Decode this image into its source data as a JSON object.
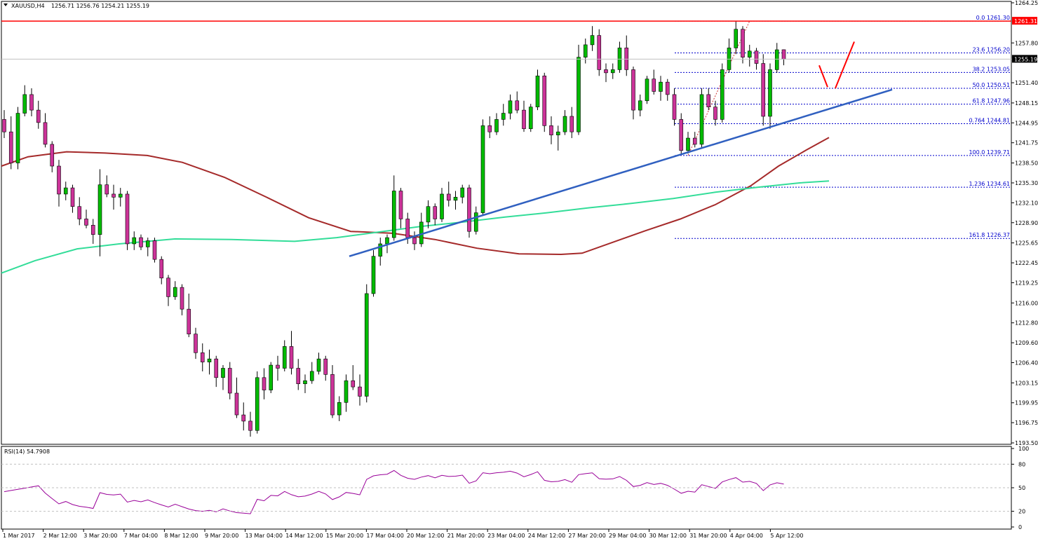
{
  "header": {
    "symbol": "XAUUSD,H4",
    "ohlc": "1256.71 1256.76 1254.21 1255.19"
  },
  "colors": {
    "bull": "#00bb00",
    "bear": "#cc3399",
    "ma_red": "#a52a2a",
    "ma_green": "#33dd99",
    "trendline": "#3060c0",
    "fib": "#0000cc",
    "resistance": "#ff0000",
    "rsi": "#990099"
  },
  "price_axis": {
    "ticks": [
      "1264.25",
      "1261.31",
      "1257.80",
      "1255.19",
      "1251.40",
      "1248.15",
      "1244.95",
      "1241.75",
      "1238.50",
      "1235.30",
      "1232.10",
      "1228.90",
      "1225.65",
      "1222.45",
      "1219.25",
      "1216.00",
      "1212.80",
      "1209.60",
      "1206.40",
      "1203.15",
      "1199.95",
      "1196.75",
      "1193.50"
    ],
    "current_price_label": "1255.19",
    "resistance_label": "1261.31"
  },
  "time_axis": {
    "labels": [
      "1 Mar 2017",
      "2 Mar 12:00",
      "3 Mar 20:00",
      "7 Mar 04:00",
      "8 Mar 12:00",
      "9 Mar 20:00",
      "13 Mar 04:00",
      "14 Mar 12:00",
      "15 Mar 20:00",
      "17 Mar 04:00",
      "20 Mar 12:00",
      "21 Mar 20:00",
      "23 Mar 04:00",
      "24 Mar 12:00",
      "27 Mar 20:00",
      "29 Mar 04:00",
      "30 Mar 12:00",
      "31 Mar 20:00",
      "4 Apr 04:00",
      "5 Apr 12:00"
    ]
  },
  "fibonacci": [
    {
      "label": "0.0 1261.30",
      "price": 1261.3
    },
    {
      "label": "23.6 1256.20",
      "price": 1256.2
    },
    {
      "label": "38.2 1253.05",
      "price": 1253.05
    },
    {
      "label": "50.0 1250.51",
      "price": 1250.51
    },
    {
      "label": "61.8 1247.96",
      "price": 1247.96
    },
    {
      "label": "0.764 1244.81",
      "price": 1244.81
    },
    {
      "label": "100.0 1239.71",
      "price": 1239.71
    },
    {
      "label": "1.236 1234.61",
      "price": 1234.61
    },
    {
      "label": "161.8 1226.37",
      "price": 1226.37
    }
  ],
  "rsi": {
    "label": "RSI(14) 54.7908",
    "levels": [
      "100",
      "80",
      "50",
      "20",
      "0"
    ]
  },
  "chart_data": {
    "type": "candlestick",
    "instrument": "XAUUSD",
    "timeframe": "H4",
    "ylim": [
      1193.5,
      1264.25
    ],
    "resistance": 1261.31,
    "last_price": 1255.19,
    "candles": [
      [
        1245.5,
        1247.0,
        1242.5,
        1243.5
      ],
      [
        1243.5,
        1246.0,
        1237.5,
        1238.5
      ],
      [
        1238.5,
        1247.5,
        1237.5,
        1246.5
      ],
      [
        1246.5,
        1251.0,
        1246.0,
        1249.5
      ],
      [
        1249.5,
        1250.5,
        1246.0,
        1247.0
      ],
      [
        1247.0,
        1248.5,
        1244.0,
        1245.0
      ],
      [
        1245.0,
        1246.5,
        1241.0,
        1241.5
      ],
      [
        1241.5,
        1242.0,
        1237.0,
        1238.0
      ],
      [
        1238.0,
        1239.0,
        1231.5,
        1233.5
      ],
      [
        1233.5,
        1235.5,
        1232.5,
        1234.5
      ],
      [
        1234.5,
        1235.0,
        1230.5,
        1231.5
      ],
      [
        1231.5,
        1233.0,
        1228.5,
        1229.5
      ],
      [
        1229.5,
        1231.0,
        1228.0,
        1228.5
      ],
      [
        1228.5,
        1229.5,
        1225.5,
        1227.0
      ],
      [
        1227.0,
        1237.5,
        1223.5,
        1235.0
      ],
      [
        1235.0,
        1236.5,
        1233.0,
        1233.5
      ],
      [
        1233.5,
        1235.0,
        1231.0,
        1233.0
      ],
      [
        1233.0,
        1234.5,
        1231.5,
        1233.5
      ],
      [
        1233.5,
        1234.0,
        1224.5,
        1225.5
      ],
      [
        1225.5,
        1227.5,
        1224.5,
        1226.5
      ],
      [
        1226.5,
        1227.0,
        1224.5,
        1225.0
      ],
      [
        1225.0,
        1226.5,
        1223.5,
        1226.0
      ],
      [
        1226.0,
        1226.5,
        1222.5,
        1223.0
      ],
      [
        1223.0,
        1223.5,
        1219.0,
        1220.0
      ],
      [
        1220.0,
        1220.5,
        1215.5,
        1217.0
      ],
      [
        1217.0,
        1219.5,
        1216.5,
        1218.5
      ],
      [
        1218.5,
        1219.0,
        1214.0,
        1215.0
      ],
      [
        1215.0,
        1217.5,
        1210.5,
        1211.0
      ],
      [
        1211.0,
        1212.0,
        1207.0,
        1208.0
      ],
      [
        1208.0,
        1209.5,
        1205.0,
        1206.5
      ],
      [
        1206.5,
        1208.5,
        1204.5,
        1207.0
      ],
      [
        1207.0,
        1207.5,
        1202.5,
        1204.0
      ],
      [
        1204.0,
        1206.0,
        1202.0,
        1205.5
      ],
      [
        1205.5,
        1206.5,
        1200.5,
        1201.5
      ],
      [
        1201.5,
        1204.0,
        1197.5,
        1198.0
      ],
      [
        1198.0,
        1200.0,
        1195.5,
        1197.0
      ],
      [
        1197.0,
        1198.5,
        1194.5,
        1195.5
      ],
      [
        1195.5,
        1205.0,
        1195.0,
        1204.0
      ],
      [
        1204.0,
        1205.5,
        1200.5,
        1202.0
      ],
      [
        1202.0,
        1206.5,
        1201.5,
        1206.0
      ],
      [
        1206.0,
        1207.5,
        1203.5,
        1205.5
      ],
      [
        1205.5,
        1210.0,
        1205.0,
        1209.0
      ],
      [
        1209.0,
        1211.5,
        1204.5,
        1205.5
      ],
      [
        1205.5,
        1207.0,
        1202.0,
        1203.0
      ],
      [
        1203.0,
        1204.5,
        1201.5,
        1203.5
      ],
      [
        1203.5,
        1206.5,
        1203.0,
        1205.0
      ],
      [
        1205.0,
        1208.0,
        1204.5,
        1207.0
      ],
      [
        1207.0,
        1207.5,
        1203.5,
        1204.5
      ],
      [
        1204.5,
        1206.0,
        1197.5,
        1198.0
      ],
      [
        1198.0,
        1201.0,
        1197.0,
        1200.0
      ],
      [
        1200.0,
        1204.5,
        1198.5,
        1203.5
      ],
      [
        1203.5,
        1206.0,
        1202.0,
        1202.5
      ],
      [
        1202.5,
        1204.5,
        1199.5,
        1201.0
      ],
      [
        1201.0,
        1219.0,
        1200.0,
        1217.5
      ],
      [
        1217.5,
        1224.5,
        1217.0,
        1223.5
      ],
      [
        1223.5,
        1226.5,
        1222.0,
        1225.5
      ],
      [
        1225.5,
        1227.0,
        1224.0,
        1226.5
      ],
      [
        1226.5,
        1236.5,
        1226.0,
        1234.0
      ],
      [
        1234.0,
        1234.5,
        1228.0,
        1229.5
      ],
      [
        1229.5,
        1230.5,
        1225.5,
        1226.5
      ],
      [
        1226.5,
        1227.5,
        1224.5,
        1225.5
      ],
      [
        1225.5,
        1230.5,
        1225.0,
        1229.0
      ],
      [
        1229.0,
        1232.5,
        1228.0,
        1231.5
      ],
      [
        1231.5,
        1232.0,
        1228.5,
        1229.5
      ],
      [
        1229.5,
        1234.5,
        1229.0,
        1233.5
      ],
      [
        1233.5,
        1235.5,
        1231.5,
        1232.5
      ],
      [
        1232.5,
        1234.0,
        1231.0,
        1233.0
      ],
      [
        1233.0,
        1235.0,
        1232.0,
        1234.5
      ],
      [
        1234.5,
        1235.0,
        1226.5,
        1227.5
      ],
      [
        1227.5,
        1231.5,
        1227.0,
        1230.5
      ],
      [
        1230.5,
        1245.5,
        1230.0,
        1244.5
      ],
      [
        1244.5,
        1246.0,
        1242.5,
        1243.5
      ],
      [
        1243.5,
        1246.5,
        1243.0,
        1245.5
      ],
      [
        1245.5,
        1248.0,
        1244.5,
        1246.5
      ],
      [
        1246.5,
        1249.5,
        1245.5,
        1248.5
      ],
      [
        1248.5,
        1250.0,
        1246.5,
        1247.0
      ],
      [
        1247.0,
        1248.5,
        1243.5,
        1244.0
      ],
      [
        1244.0,
        1248.0,
        1243.5,
        1247.5
      ],
      [
        1247.5,
        1253.5,
        1247.0,
        1252.5
      ],
      [
        1252.5,
        1253.0,
        1243.5,
        1244.5
      ],
      [
        1244.5,
        1246.0,
        1241.5,
        1243.0
      ],
      [
        1243.0,
        1244.5,
        1240.5,
        1243.5
      ],
      [
        1243.5,
        1247.0,
        1243.0,
        1246.0
      ],
      [
        1246.0,
        1247.5,
        1242.5,
        1243.5
      ],
      [
        1243.5,
        1257.5,
        1243.0,
        1255.5
      ],
      [
        1255.5,
        1258.5,
        1254.5,
        1257.5
      ],
      [
        1257.5,
        1260.5,
        1256.5,
        1259.0
      ],
      [
        1259.0,
        1260.0,
        1252.5,
        1253.5
      ],
      [
        1253.5,
        1254.5,
        1251.5,
        1253.0
      ],
      [
        1253.0,
        1254.5,
        1252.0,
        1253.5
      ],
      [
        1253.5,
        1258.0,
        1253.0,
        1257.0
      ],
      [
        1257.0,
        1259.0,
        1252.5,
        1253.5
      ],
      [
        1253.5,
        1254.0,
        1245.5,
        1247.0
      ],
      [
        1247.0,
        1249.5,
        1246.0,
        1248.5
      ],
      [
        1248.5,
        1252.5,
        1248.0,
        1252.0
      ],
      [
        1252.0,
        1253.5,
        1249.5,
        1250.0
      ],
      [
        1250.0,
        1252.5,
        1248.5,
        1251.5
      ],
      [
        1251.5,
        1252.0,
        1248.5,
        1249.5
      ],
      [
        1249.5,
        1250.5,
        1244.5,
        1245.5
      ],
      [
        1245.5,
        1246.5,
        1240.0,
        1240.5
      ],
      [
        1240.5,
        1243.5,
        1240.0,
        1242.5
      ],
      [
        1242.5,
        1243.5,
        1241.0,
        1241.5
      ],
      [
        1241.5,
        1250.5,
        1241.0,
        1249.5
      ],
      [
        1249.5,
        1250.5,
        1247.0,
        1247.5
      ],
      [
        1247.5,
        1248.5,
        1244.5,
        1245.5
      ],
      [
        1245.5,
        1254.5,
        1245.0,
        1253.5
      ],
      [
        1253.5,
        1258.5,
        1253.0,
        1257.0
      ],
      [
        1257.0,
        1261.3,
        1256.0,
        1260.0
      ],
      [
        1260.0,
        1260.5,
        1254.5,
        1255.5
      ],
      [
        1255.5,
        1257.5,
        1254.0,
        1256.5
      ],
      [
        1256.5,
        1257.0,
        1253.5,
        1254.5
      ],
      [
        1254.5,
        1256.0,
        1244.5,
        1246.0
      ],
      [
        1246.0,
        1254.5,
        1244.0,
        1253.5
      ],
      [
        1253.5,
        1257.8,
        1253.0,
        1256.7
      ],
      [
        1256.71,
        1256.76,
        1254.21,
        1255.19
      ]
    ],
    "indicators": [
      {
        "type": "moving_average",
        "color": "#a52a2a"
      },
      {
        "type": "moving_average",
        "color": "#33dd99"
      },
      {
        "type": "rsi",
        "period": 14,
        "value": 54.7908
      }
    ]
  }
}
